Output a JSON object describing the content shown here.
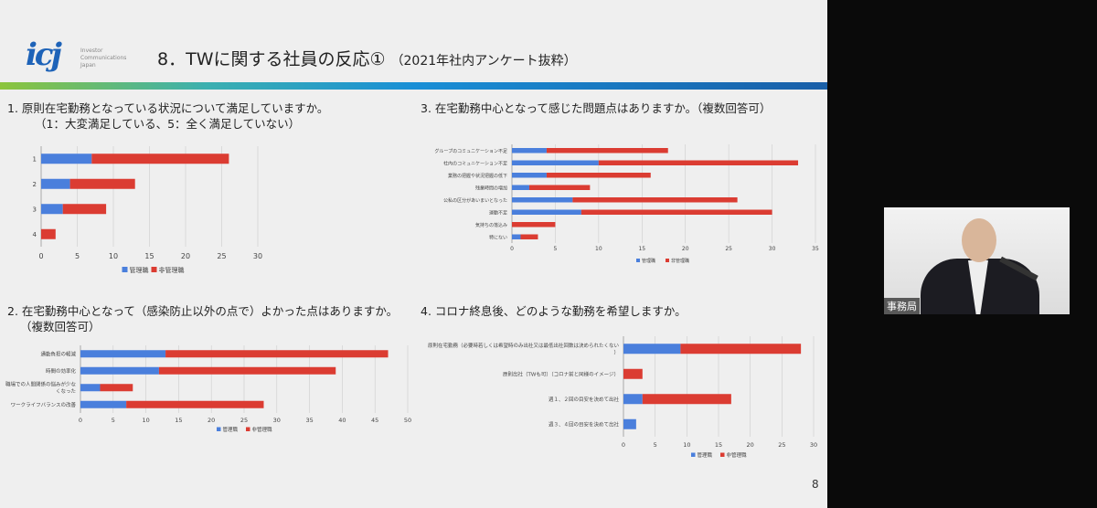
{
  "header": {
    "logo_text": "icj",
    "logo_sub": [
      "Investor",
      "Communications",
      "Japan"
    ],
    "title": "8．TWに関する社員の反応①",
    "subtitle": "（2021年社内アンケート抜粋）"
  },
  "questions": {
    "q1": "1. 原則在宅勤務となっている状況について満足していますか。",
    "q1_sub": "（1：大変満足している、5：全く満足していない）",
    "q2": "2. 在宅勤務中心となって（感染防止以外の点で）よかった点はありますか。",
    "q2_sub": "（複数回答可）",
    "q3": "3. 在宅勤務中心となって感じた問題点はありますか。（複数回答可）",
    "q4": "4. コロナ終息後、どのような勤務を希望しますか。"
  },
  "colors": {
    "manager": "#4a7fdc",
    "non_manager": "#db3c32"
  },
  "chart_data": [
    {
      "type": "bar",
      "orientation": "horizontal",
      "stacked": true,
      "categories": [
        "1",
        "2",
        "3",
        "4"
      ],
      "series": [
        {
          "name": "管理職",
          "values": [
            7,
            4,
            3,
            0
          ]
        },
        {
          "name": "非管理職",
          "values": [
            19,
            9,
            6,
            2
          ]
        }
      ],
      "xlim": [
        0,
        30
      ],
      "xticks": [
        0,
        5,
        10,
        15,
        20,
        25,
        30
      ],
      "grid": true,
      "legend": "bottom"
    },
    {
      "type": "bar",
      "orientation": "horizontal",
      "stacked": true,
      "categories": [
        "通勤負担の軽減",
        "時間の効率化",
        "職場での人間関係の悩みが少なくなった",
        "ワークライフバランスの改善"
      ],
      "series": [
        {
          "name": "管理職",
          "values": [
            13,
            12,
            3,
            7
          ]
        },
        {
          "name": "非管理職",
          "values": [
            34,
            27,
            5,
            21
          ]
        }
      ],
      "xlim": [
        0,
        50
      ],
      "xticks": [
        0,
        5,
        10,
        15,
        20,
        25,
        30,
        35,
        40,
        45,
        50
      ],
      "grid": true,
      "legend": "bottom"
    },
    {
      "type": "bar",
      "orientation": "horizontal",
      "stacked": true,
      "categories": [
        "グループのコミュニケーション不足",
        "社内のコミュニケーション不足",
        "業務の把握や状況把握の低下",
        "残業時間の増加",
        "公私の区分があいまいとなった",
        "運動不足",
        "気持ちの落込み",
        "特にない"
      ],
      "series": [
        {
          "name": "管理職",
          "values": [
            4,
            10,
            4,
            2,
            7,
            8,
            0,
            1
          ]
        },
        {
          "name": "非管理職",
          "values": [
            14,
            23,
            12,
            7,
            19,
            22,
            5,
            2
          ]
        }
      ],
      "xlim": [
        0,
        35
      ],
      "xticks": [
        0,
        5,
        10,
        15,
        20,
        25,
        30,
        35
      ],
      "grid": true,
      "legend": "bottom"
    },
    {
      "type": "bar",
      "orientation": "horizontal",
      "stacked": true,
      "categories": [
        "原則在宅勤務（必要時若しくは希望時のみ出社又は最低出社回数は決められたくない）",
        "原則出社（TWも可）（コロナ前と同様のイメージ）",
        "週１、２回の目安を決めて出社",
        "週３、４回の目安を決めて出社"
      ],
      "series": [
        {
          "name": "管理職",
          "values": [
            9,
            0,
            3,
            2
          ]
        },
        {
          "name": "非管理職",
          "values": [
            19,
            3,
            14,
            0
          ]
        }
      ],
      "xlim": [
        0,
        30
      ],
      "xticks": [
        0,
        5,
        10,
        15,
        20,
        25,
        30
      ],
      "grid": true,
      "legend": "bottom"
    }
  ],
  "page_number": "8",
  "video": {
    "label": "事務局"
  }
}
